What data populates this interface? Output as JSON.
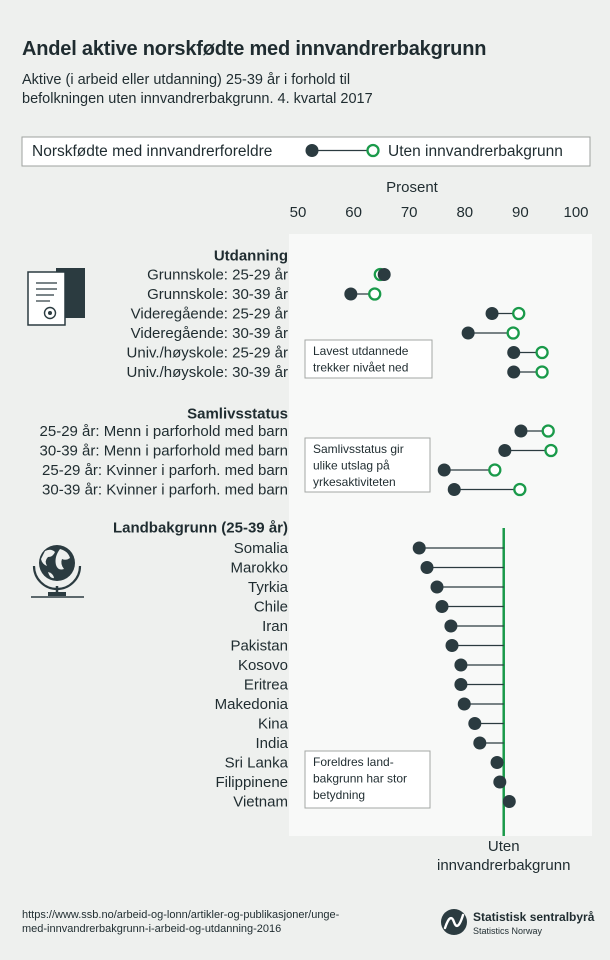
{
  "chart_data": {
    "type": "scatter",
    "title": "Andel aktive norskfødte med innvandrerbakgrunn",
    "subtitle": [
      "Aktive (i arbeid eller utdanning) 25-39 år i forhold til",
      "befolkningen uten innvandrerbakgrunn. 4. kvartal 2017"
    ],
    "xlabel": "Prosent",
    "xlim": [
      50,
      100
    ],
    "xticks": [
      50,
      60,
      70,
      80,
      90,
      100
    ],
    "grid": false,
    "legend": "top",
    "series": [
      {
        "name": "Norskfødte med innvandrerforeldre",
        "color": "#2b3b40"
      },
      {
        "name": "Uten innvandrerbakgrunn",
        "color": "#1a9a4a"
      }
    ],
    "groups": [
      {
        "heading": "Utdanning",
        "note": [
          "Lavest utdannede",
          "trekker nivået ned"
        ],
        "rows": [
          {
            "label": "Grunnskole: 25-29 år",
            "norskfodte": 65.5,
            "uten_innvandrerbakgrunn": 64.8
          },
          {
            "label": "Grunnskole: 30-39 år",
            "norskfodte": 59.5,
            "uten_innvandrerbakgrunn": 63.8
          },
          {
            "label": "Videregående: 25-29 år",
            "norskfodte": 84.9,
            "uten_innvandrerbakgrunn": 89.7
          },
          {
            "label": "Videregående: 30-39 år",
            "norskfodte": 80.6,
            "uten_innvandrerbakgrunn": 88.7
          },
          {
            "label": "Univ./høyskole: 25-29 år",
            "norskfodte": 88.8,
            "uten_innvandrerbakgrunn": 93.9
          },
          {
            "label": "Univ./høyskole: 30-39 år",
            "norskfodte": 88.8,
            "uten_innvandrerbakgrunn": 93.9
          }
        ]
      },
      {
        "heading": "Samlivsstatus",
        "note": [
          "Samlivsstatus gir",
          "ulike utslag på",
          "yrkesaktiviteten"
        ],
        "rows": [
          {
            "label": "25-29 år: Menn i parforhold med barn",
            "norskfodte": 90.1,
            "uten_innvandrerbakgrunn": 95.0
          },
          {
            "label": "30-39 år: Menn i parforhold med barn",
            "norskfodte": 87.2,
            "uten_innvandrerbakgrunn": 95.5
          },
          {
            "label": "25-29 år: Kvinner i parforh. med barn",
            "norskfodte": 76.3,
            "uten_innvandrerbakgrunn": 85.4
          },
          {
            "label": "30-39 år: Kvinner i parforh. med barn",
            "norskfodte": 78.1,
            "uten_innvandrerbakgrunn": 89.9
          }
        ]
      },
      {
        "heading": "Landbakgrunn (25-39 år)",
        "note": [
          "Foreldres land-",
          "bakgrunn har stor",
          "betydning"
        ],
        "reference": 87.0,
        "reference_label": [
          "Uten",
          "innvandrerbakgrunn"
        ],
        "rows": [
          {
            "label": "Somalia",
            "norskfodte": 71.8
          },
          {
            "label": "Marokko",
            "norskfodte": 73.2
          },
          {
            "label": "Tyrkia",
            "norskfodte": 75.0
          },
          {
            "label": "Chile",
            "norskfodte": 75.9
          },
          {
            "label": "Iran",
            "norskfodte": 77.5
          },
          {
            "label": "Pakistan",
            "norskfodte": 77.7
          },
          {
            "label": "Kosovo",
            "norskfodte": 79.3
          },
          {
            "label": "Eritrea",
            "norskfodte": 79.3
          },
          {
            "label": "Makedonia",
            "norskfodte": 79.9
          },
          {
            "label": "Kina",
            "norskfodte": 81.8
          },
          {
            "label": "India",
            "norskfodte": 82.7
          },
          {
            "label": "Sri Lanka",
            "norskfodte": 85.8
          },
          {
            "label": "Filippinene",
            "norskfodte": 86.3
          },
          {
            "label": "Vietnam",
            "norskfodte": 88.0
          }
        ]
      }
    ]
  },
  "footer": {
    "source_url": [
      "https://www.ssb.no/arbeid-og-lonn/artikler-og-publikasjoner/unge-",
      "med-innvandrerbakgrunn-i-arbeid-og-utdanning-2016"
    ],
    "logo": {
      "name": "Statistisk sentralbyrå",
      "subtitle": "Statistics Norway"
    }
  },
  "icons": {
    "education": "certificate-icon",
    "country": "globe-icon",
    "logo": "ssb-logo-icon"
  },
  "colors": {
    "background": "#eef0ee",
    "panel": "#f8f9f8",
    "text": "#1f2c30",
    "dark": "#2b3b40",
    "green": "#1a9a4a",
    "note_border": "#a3a7a4",
    "note_text": "#1a8f47"
  }
}
